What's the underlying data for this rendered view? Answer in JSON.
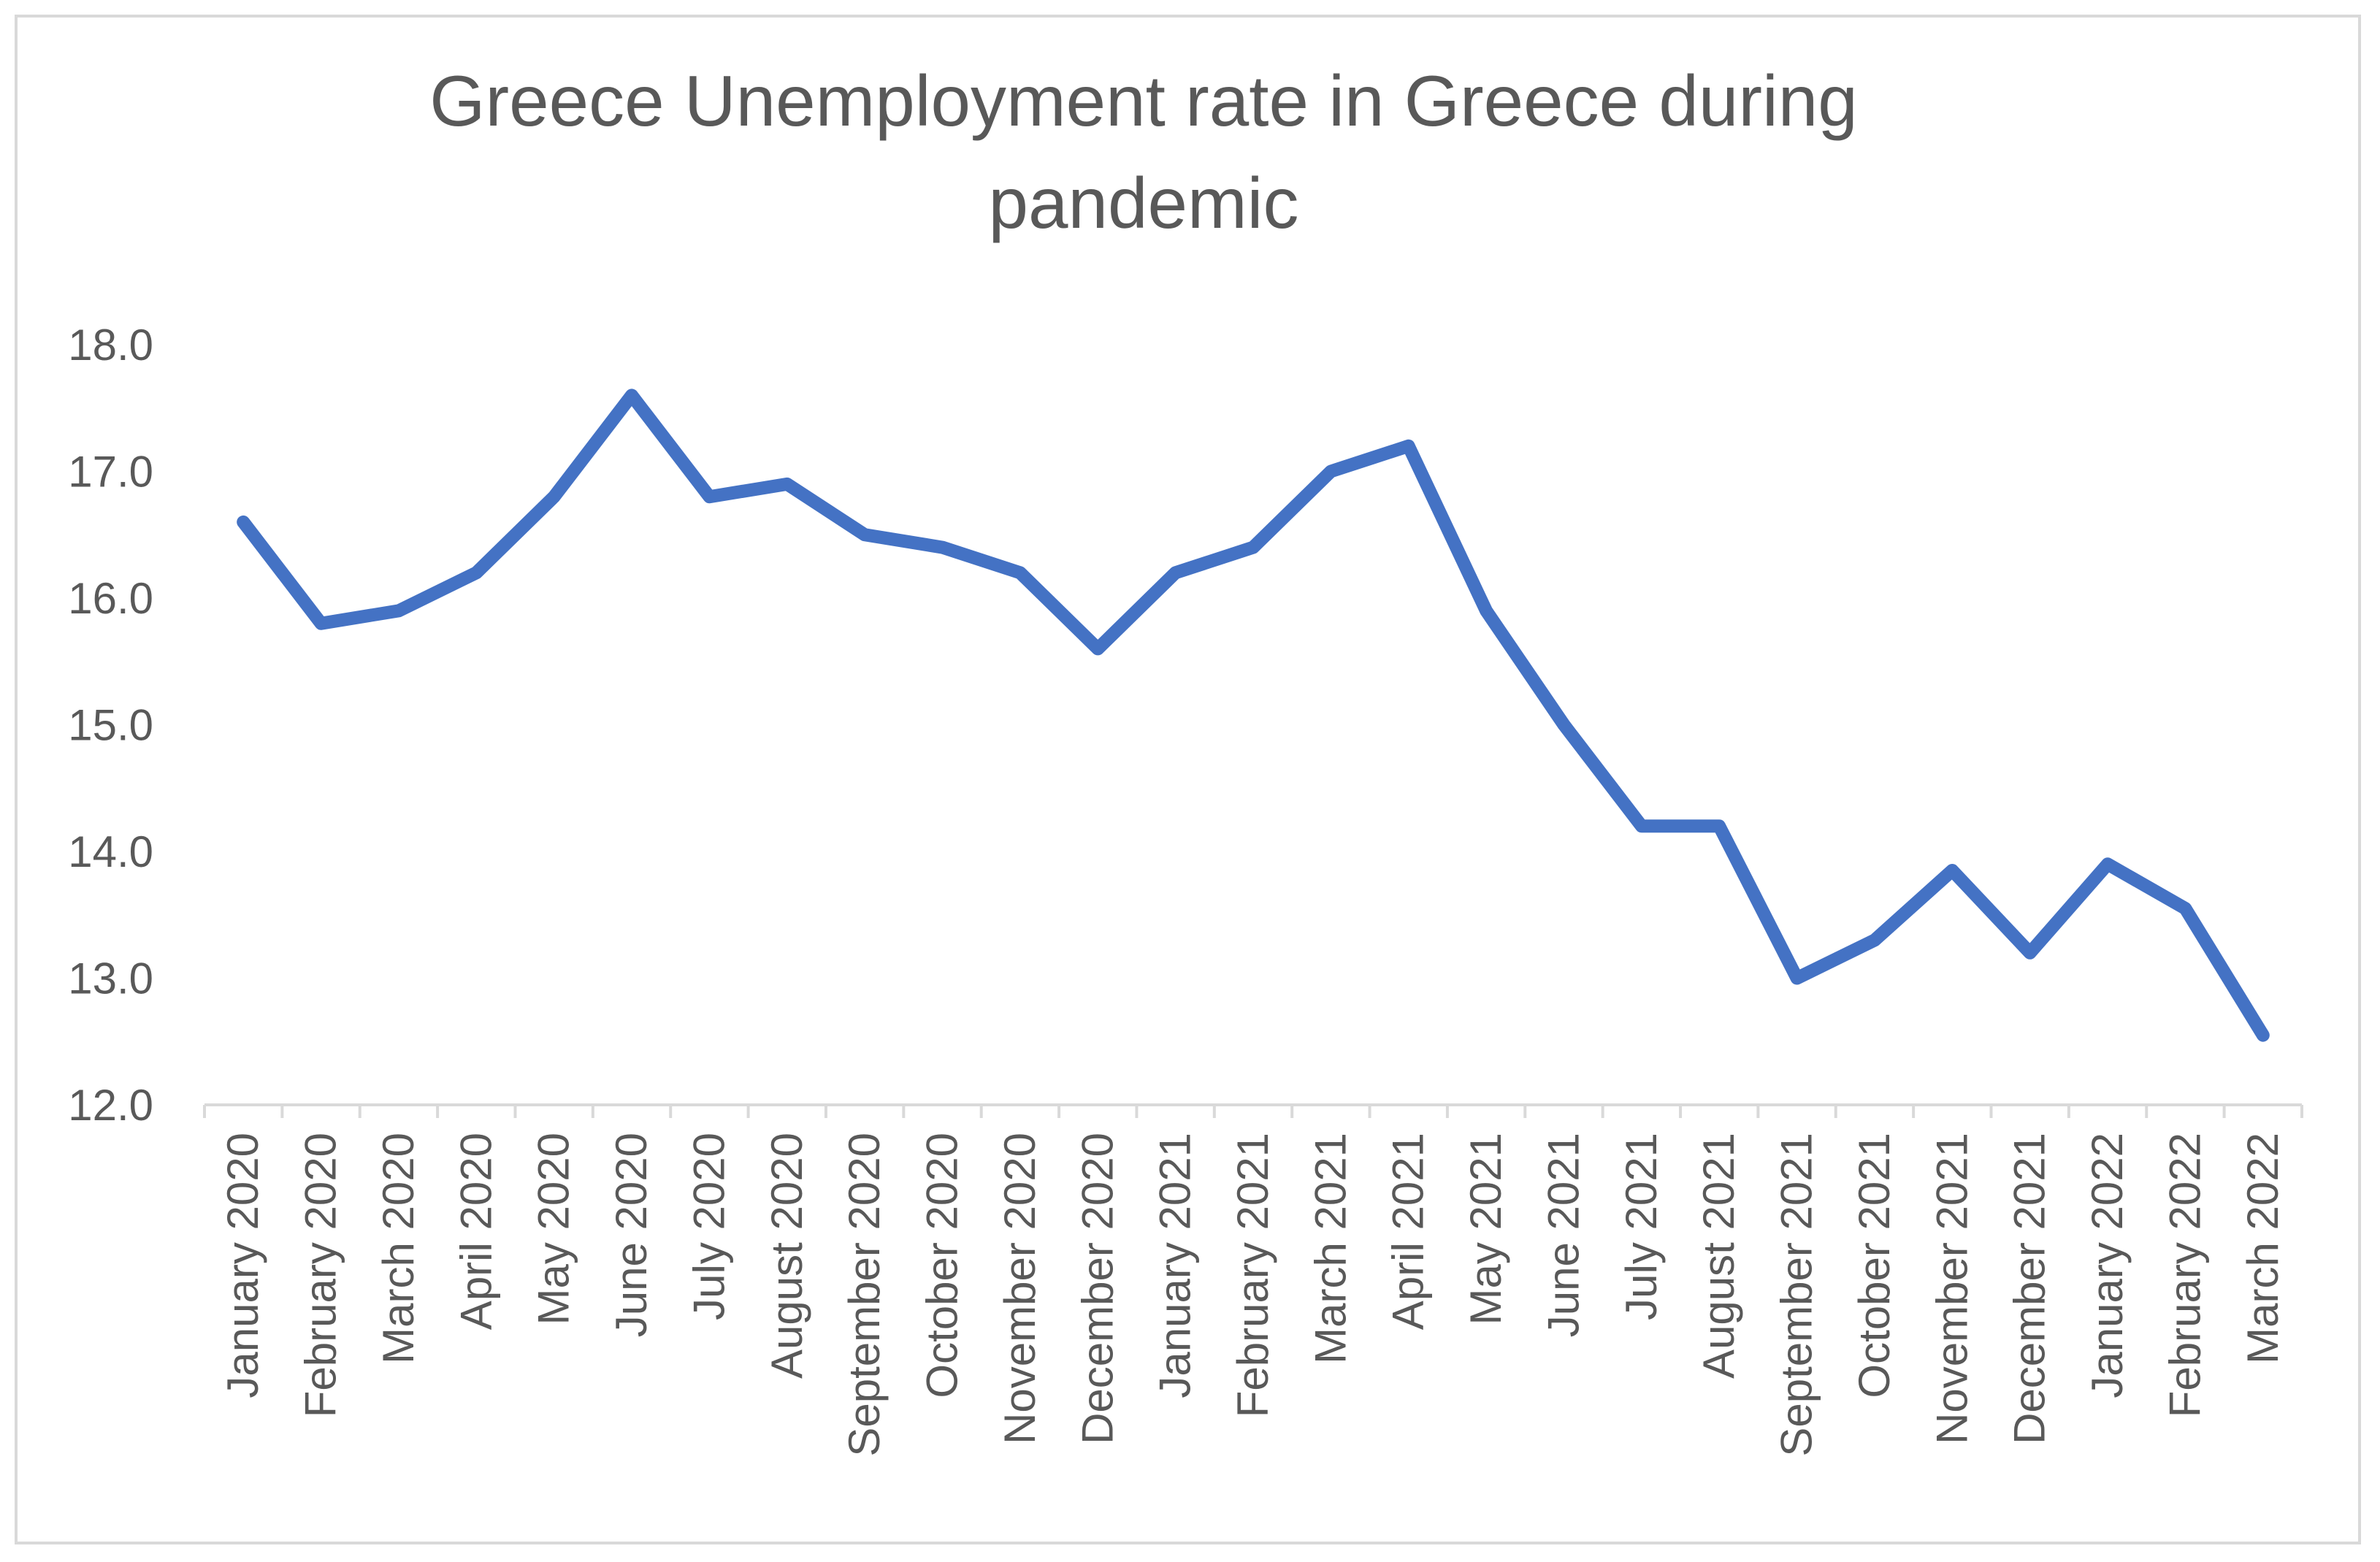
{
  "chart_data": {
    "type": "line",
    "title": "Greece Unemployment rate in Greece during pandemic",
    "title_lines": [
      "Greece Unemployment rate in Greece during",
      "pandemic"
    ],
    "xlabel": "",
    "ylabel": "",
    "ylim": [
      12.0,
      18.0
    ],
    "yticks": [
      "12.0",
      "13.0",
      "14.0",
      "15.0",
      "16.0",
      "17.0",
      "18.0"
    ],
    "grid": false,
    "legend": "none",
    "line_color": "#4472c4",
    "categories": [
      "January 2020",
      "February 2020",
      "March 2020",
      "April 2020",
      "May 2020",
      "June 2020",
      "July 2020",
      "August 2020",
      "September 2020",
      "October 2020",
      "November 2020",
      "December 2020",
      "January 2021",
      "February 2021",
      "March 2021",
      "April 2021",
      "May 2021",
      "June 2021",
      "July 2021",
      "August 2021",
      "September 2021",
      "October 2021",
      "November 2021",
      "December 2021",
      "January 2022",
      "February 2022",
      "March 2022"
    ],
    "series": [
      {
        "values": [
          16.6,
          15.8,
          15.9,
          16.2,
          16.8,
          17.6,
          16.8,
          16.9,
          16.5,
          16.4,
          16.2,
          15.6,
          16.2,
          16.4,
          17.0,
          17.2,
          15.9,
          15.0,
          14.2,
          14.2,
          13.0,
          13.3,
          13.85,
          13.2,
          13.9,
          13.55,
          12.55
        ]
      }
    ]
  }
}
